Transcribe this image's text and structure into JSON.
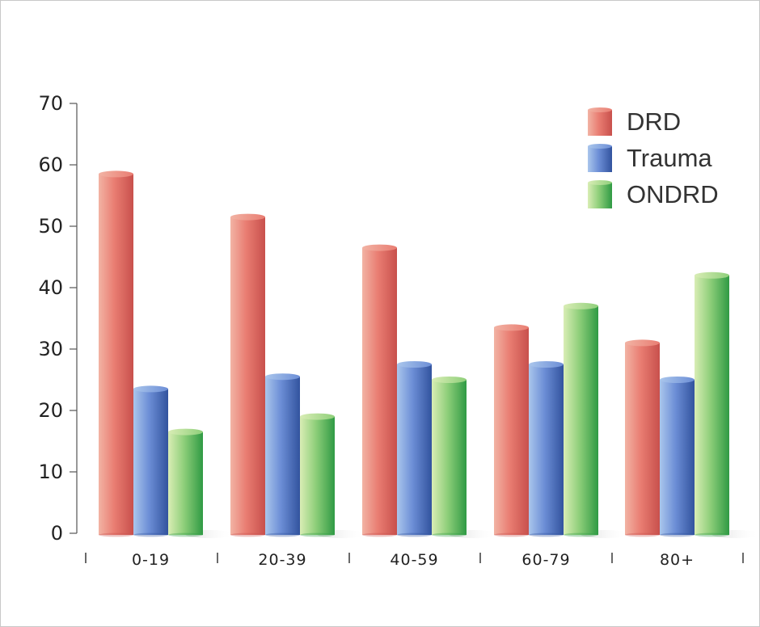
{
  "chart_data": {
    "type": "bar",
    "title": "",
    "xlabel": "",
    "ylabel": "",
    "categories": [
      "0-19",
      "20-39",
      "40-59",
      "60-79",
      "80+"
    ],
    "series": [
      {
        "name": "DRD",
        "values": [
          58.5,
          51.5,
          46.5,
          33.5,
          31
        ]
      },
      {
        "name": "Trauma",
        "values": [
          23.5,
          25.5,
          27.5,
          27.5,
          25
        ]
      },
      {
        "name": "ONDRD",
        "values": [
          16.5,
          19,
          25,
          37,
          42
        ]
      }
    ],
    "yticks": [
      "0",
      "10",
      "20",
      "30",
      "40",
      "50",
      "60",
      "70"
    ],
    "ylim": [
      0,
      70
    ],
    "grid": false,
    "legend_position": "top-right",
    "colors": {
      "DRD": [
        "#f2b3a4",
        "#e97d72",
        "#c8504c"
      ],
      "Trauma": [
        "#aac6ec",
        "#6c8ed6",
        "#32539e"
      ],
      "ONDRD": [
        "#d9edb5",
        "#8fcf7a",
        "#2f9a44"
      ]
    }
  }
}
